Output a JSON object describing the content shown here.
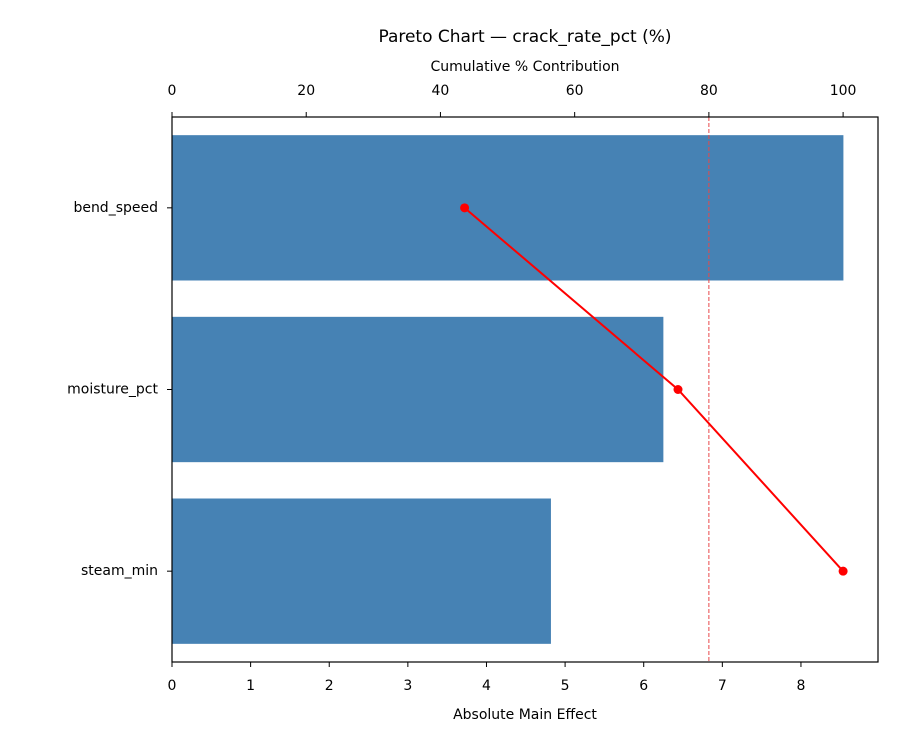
{
  "chart_data": {
    "type": "pareto",
    "title": "Pareto Chart — crack_rate_pct (%)",
    "xlabel": "Absolute Main Effect",
    "x2label": "Cumulative % Contribution",
    "categories": [
      "bend_speed",
      "moisture_pct",
      "steam_min"
    ],
    "series": [
      {
        "color": "#4682b4",
        "values": [
          8.54,
          6.25,
          4.82
        ]
      },
      {
        "color": "#ff0000",
        "values": [
          43.6,
          75.4,
          100
        ],
        "axis": "x2"
      }
    ],
    "xlim": [
      0,
      8.98
    ],
    "xticks": [
      0,
      1,
      2,
      3,
      4,
      5,
      6,
      7,
      8
    ],
    "x2lim": [
      0,
      105.2
    ],
    "x2ticks": [
      0,
      20,
      40,
      60,
      80,
      100
    ],
    "threshold": 80,
    "threshold_color": "#e8474a"
  }
}
